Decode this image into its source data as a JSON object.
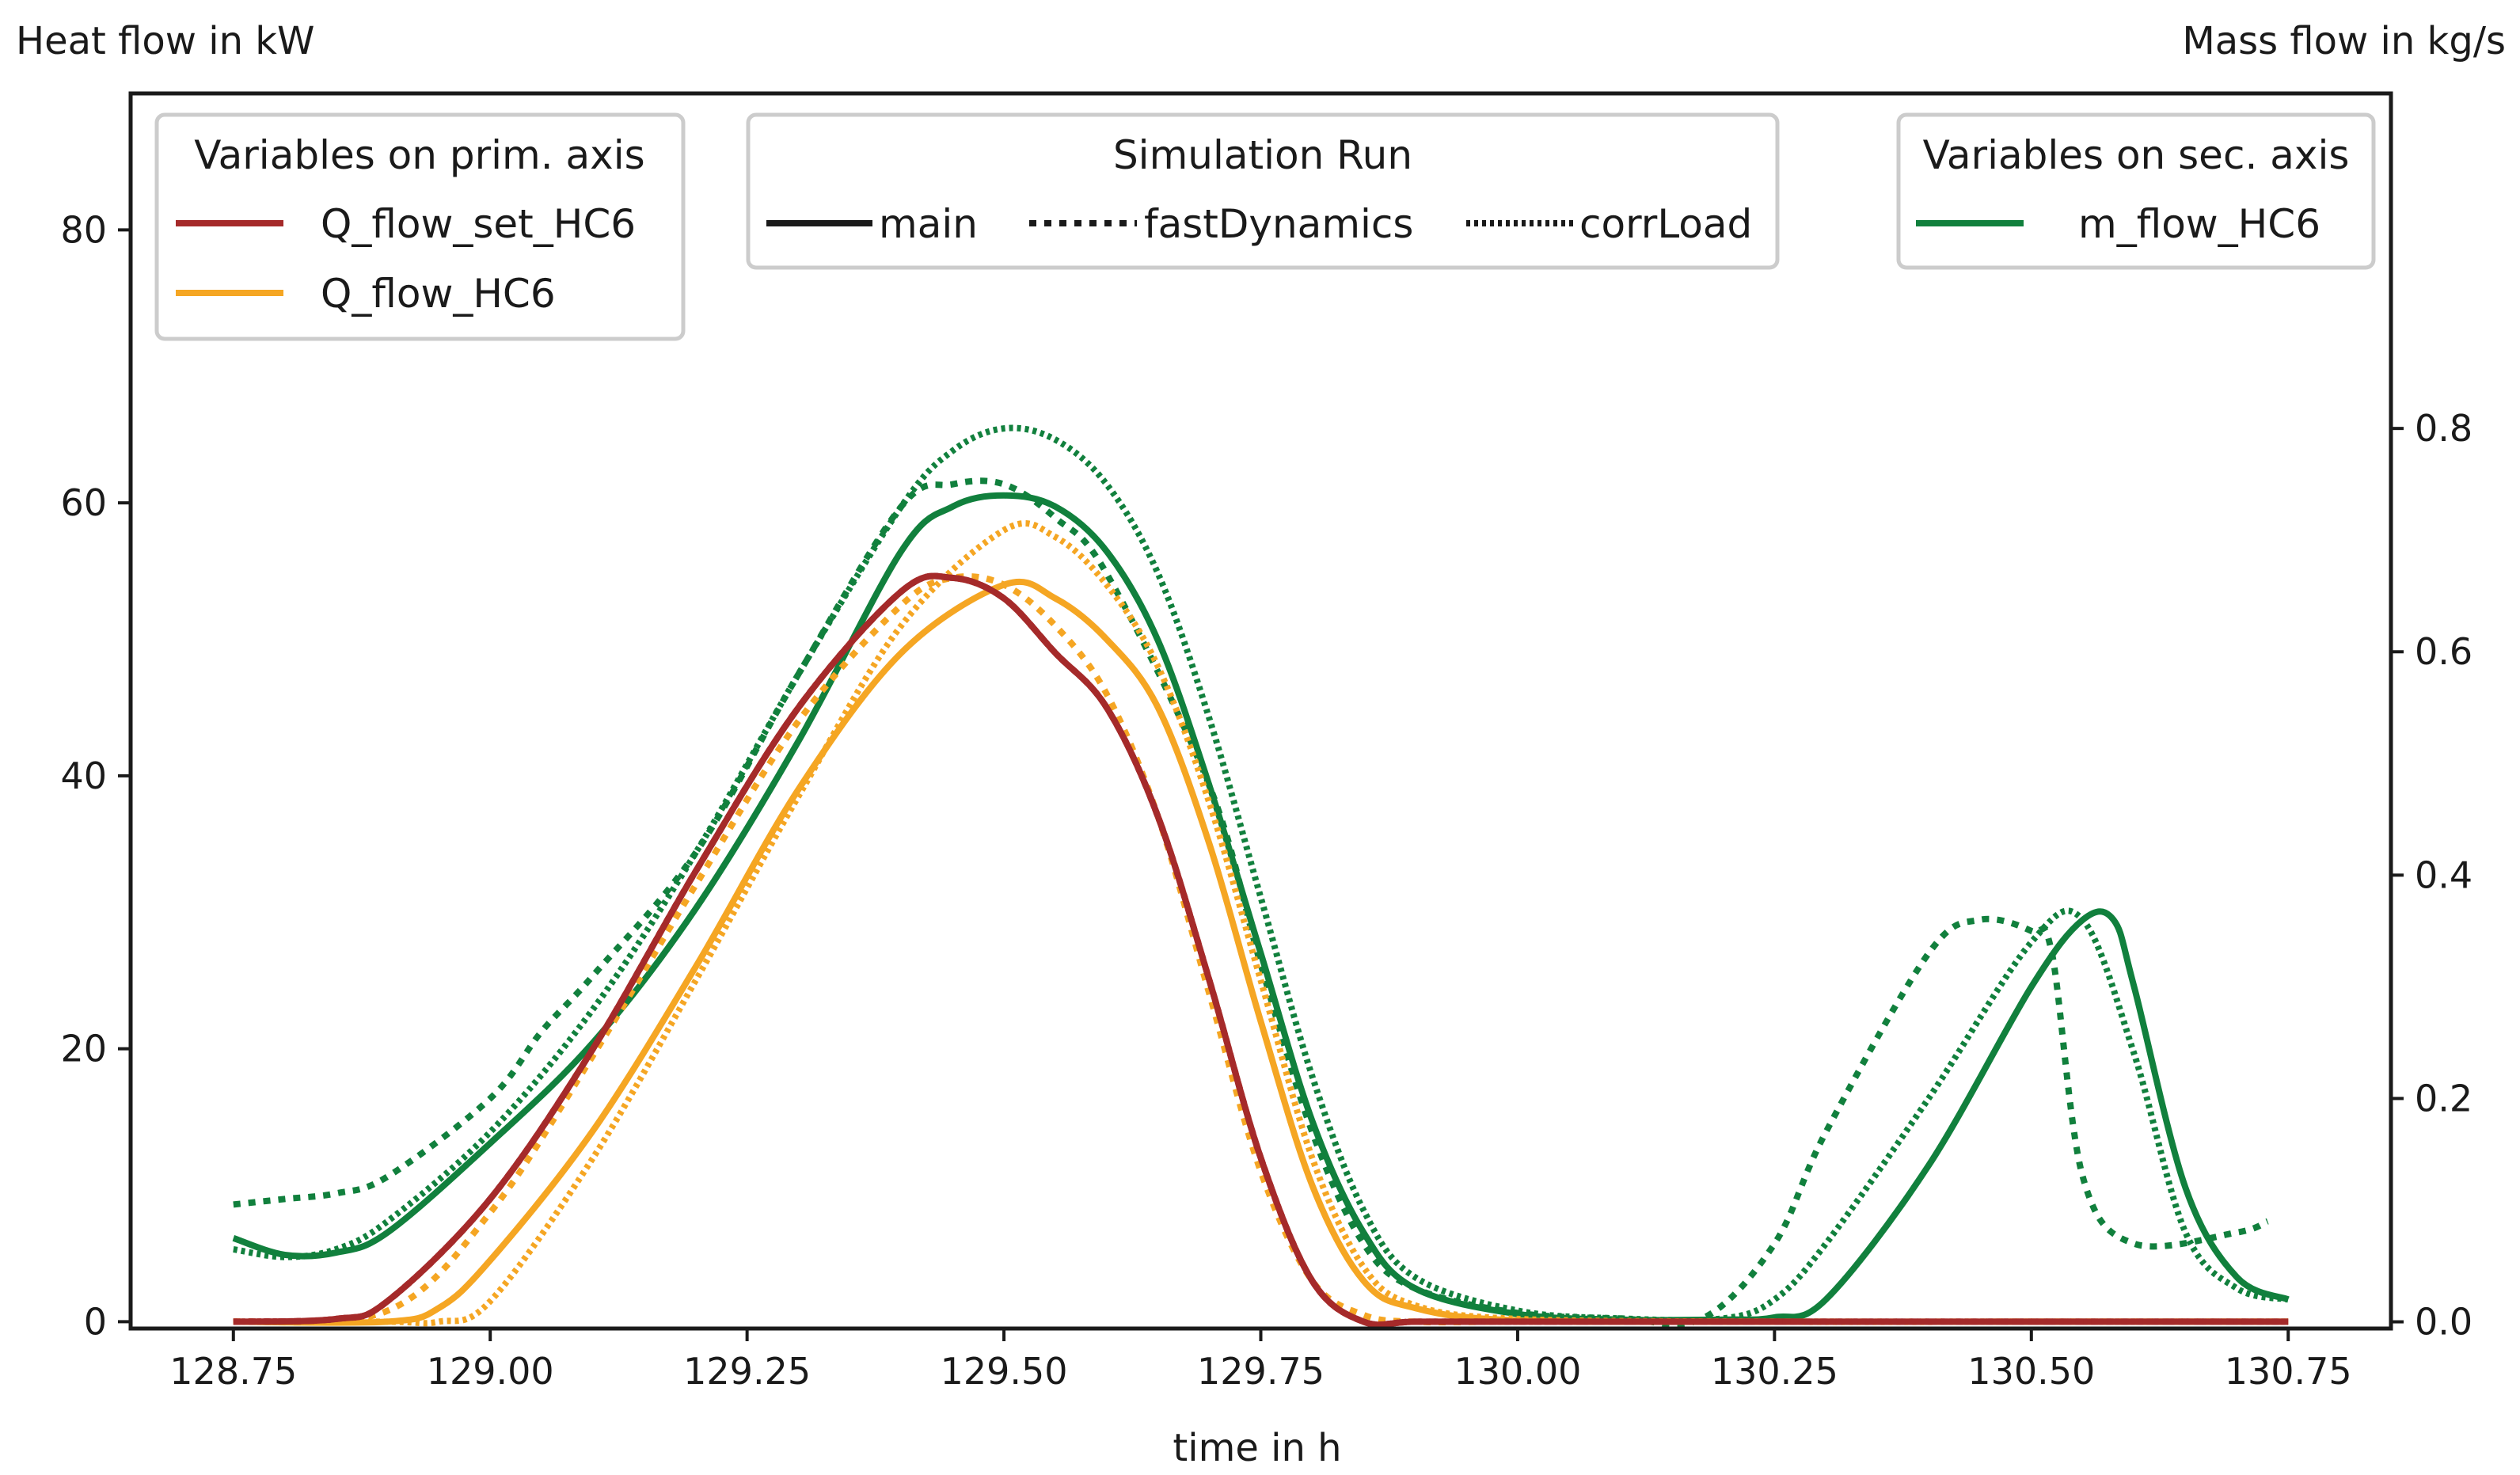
{
  "chart_data": {
    "type": "line",
    "xlabel": "time in h",
    "ylabel_primary": "Heat flow in kW",
    "ylabel_secondary": "Mass flow in kg/s",
    "xlim": [
      128.65,
      130.85
    ],
    "ylim_primary": [
      -0.5,
      90
    ],
    "ylim_secondary": [
      -0.006,
      1.1
    ],
    "x_ticks": [
      128.75,
      129.0,
      129.25,
      129.5,
      129.75,
      130.0,
      130.25,
      130.5,
      130.75
    ],
    "x_tick_labels": [
      "128.75",
      "129.00",
      "129.25",
      "129.50",
      "129.75",
      "130.00",
      "130.25",
      "130.50",
      "130.75"
    ],
    "y_ticks_primary": [
      0,
      20,
      40,
      60,
      80
    ],
    "y_tick_labels_primary": [
      "0",
      "20",
      "40",
      "60",
      "80"
    ],
    "y_ticks_secondary": [
      0.0,
      0.2,
      0.4,
      0.6,
      0.8
    ],
    "y_tick_labels_secondary": [
      "0.0",
      "0.2",
      "0.4",
      "0.6",
      "0.8"
    ],
    "colors": {
      "Q_flow_set_HC6": "#a52a2a",
      "Q_flow_HC6": "#f5a623",
      "m_flow_HC6": "#11803d"
    },
    "legends": {
      "primary": {
        "title": "Variables on prim. axis",
        "entries": [
          "Q_flow_set_HC6",
          "Q_flow_HC6"
        ],
        "placement": "top-left"
      },
      "runs": {
        "title": "Simulation Run",
        "entries": [
          "main",
          "fastDynamics",
          "corrLoad"
        ],
        "placement": "top-center"
      },
      "secondary": {
        "title": "Variables on sec. axis",
        "entries": [
          "m_flow_HC6"
        ],
        "placement": "top-right"
      }
    },
    "series": [
      {
        "name": "Q_flow_set_HC6",
        "run": "main",
        "axis": "primary",
        "x": [
          128.75,
          128.85,
          128.9,
          129.0,
          129.1,
          129.2,
          129.3,
          129.4,
          129.45,
          129.5,
          129.55,
          129.6,
          129.65,
          129.7,
          129.75,
          129.8,
          129.85,
          129.9,
          130.0,
          130.25,
          130.5,
          130.75
        ],
        "y": [
          0,
          0.2,
          1.5,
          9,
          20,
          33,
          45,
          53.5,
          54.5,
          53,
          49,
          45,
          37,
          25,
          12,
          3,
          0,
          0,
          0,
          0,
          0,
          0
        ]
      },
      {
        "name": "Q_flow_set_HC6",
        "run": "fastDynamics",
        "axis": "primary",
        "x": [
          128.75,
          128.85,
          128.9,
          129.0,
          129.1,
          129.2,
          129.3,
          129.4,
          129.45,
          129.5,
          129.55,
          129.6,
          129.65,
          129.7,
          129.75,
          129.8,
          129.85,
          129.9,
          130.0,
          130.25,
          130.5,
          130.75
        ],
        "y": [
          0,
          0.2,
          1.5,
          9,
          20,
          33,
          45,
          53.5,
          54.5,
          53,
          49,
          45,
          37,
          25,
          12,
          3,
          0,
          0,
          0,
          0,
          0,
          0
        ]
      },
      {
        "name": "Q_flow_set_HC6",
        "run": "corrLoad",
        "axis": "primary",
        "x": [
          128.75,
          128.85,
          128.9,
          129.0,
          129.1,
          129.2,
          129.3,
          129.4,
          129.45,
          129.5,
          129.55,
          129.6,
          129.65,
          129.7,
          129.75,
          129.8,
          129.85,
          129.9,
          130.0,
          130.25,
          130.5,
          130.75
        ],
        "y": [
          0,
          0.2,
          1.5,
          9,
          20,
          33,
          45,
          53.5,
          54.5,
          53,
          49,
          45,
          37,
          25,
          12,
          3,
          0,
          0,
          0,
          0,
          0,
          0
        ]
      },
      {
        "name": "Q_flow_HC6",
        "run": "main",
        "axis": "primary",
        "x": [
          128.75,
          128.9,
          128.95,
          129.0,
          129.1,
          129.2,
          129.3,
          129.4,
          129.5,
          129.55,
          129.6,
          129.65,
          129.7,
          129.75,
          129.8,
          129.85,
          129.9,
          130.0,
          130.25,
          130.5,
          130.75
        ],
        "y": [
          0,
          0,
          1,
          4.5,
          14,
          26,
          39,
          49,
          54,
          53,
          50,
          45,
          35,
          22,
          10,
          3,
          1,
          0.1,
          0,
          0,
          0
        ]
      },
      {
        "name": "Q_flow_HC6",
        "run": "fastDynamics",
        "axis": "primary",
        "x": [
          128.75,
          128.9,
          129.0,
          129.1,
          129.2,
          129.3,
          129.4,
          129.45,
          129.5,
          129.55,
          129.6,
          129.65,
          129.7,
          129.75,
          129.8,
          129.85,
          129.9,
          130.0,
          130.25,
          130.5,
          130.75
        ],
        "y": [
          0,
          0.8,
          8,
          19.5,
          32,
          44,
          52.5,
          54.5,
          54,
          51,
          46,
          37,
          24,
          11,
          3,
          0.5,
          0,
          0,
          0,
          0,
          0
        ]
      },
      {
        "name": "Q_flow_HC6",
        "run": "corrLoad",
        "axis": "primary",
        "x": [
          128.75,
          128.9,
          128.95,
          129.0,
          129.1,
          129.2,
          129.3,
          129.4,
          129.5,
          129.55,
          129.6,
          129.65,
          129.7,
          129.75,
          129.8,
          129.85,
          129.9,
          130.0,
          130.25,
          130.5,
          130.75
        ],
        "y": [
          0,
          0,
          0,
          1.5,
          12,
          25,
          38.5,
          51,
          58,
          57.5,
          54,
          48,
          38,
          25,
          12,
          4,
          1.2,
          0.2,
          0,
          0,
          0
        ]
      },
      {
        "name": "m_flow_HC6",
        "run": "main",
        "axis": "secondary",
        "x": [
          128.75,
          128.8,
          128.85,
          128.9,
          129.0,
          129.1,
          129.2,
          129.3,
          129.4,
          129.45,
          129.5,
          129.55,
          129.6,
          129.65,
          129.7,
          129.75,
          129.8,
          129.85,
          129.9,
          130.0,
          130.1,
          130.2,
          130.25,
          130.3,
          130.4,
          130.5,
          130.55,
          130.58,
          130.6,
          130.65,
          130.7,
          130.75
        ],
        "y": [
          0.075,
          0.06,
          0.062,
          0.08,
          0.16,
          0.25,
          0.37,
          0.52,
          0.69,
          0.73,
          0.74,
          0.73,
          0.69,
          0.61,
          0.48,
          0.33,
          0.18,
          0.08,
          0.03,
          0.007,
          0.002,
          0.002,
          0.004,
          0.02,
          0.14,
          0.3,
          0.36,
          0.36,
          0.3,
          0.12,
          0.04,
          0.02
        ]
      },
      {
        "name": "m_flow_HC6",
        "run": "fastDynamics",
        "axis": "secondary",
        "x": [
          128.75,
          128.8,
          128.85,
          128.9,
          129.0,
          129.05,
          129.1,
          129.2,
          129.3,
          129.4,
          129.45,
          129.5,
          129.55,
          129.6,
          129.7,
          129.75,
          129.8,
          129.85,
          129.9,
          130.0,
          130.1,
          130.18,
          130.25,
          130.3,
          130.4,
          130.45,
          130.5,
          130.52,
          130.55,
          130.6,
          130.7,
          130.73
        ],
        "y": [
          0.105,
          0.11,
          0.115,
          0.13,
          0.2,
          0.26,
          0.31,
          0.42,
          0.58,
          0.73,
          0.75,
          0.75,
          0.72,
          0.67,
          0.48,
          0.32,
          0.17,
          0.07,
          0.03,
          0.008,
          0.003,
          0.003,
          0.07,
          0.17,
          0.33,
          0.36,
          0.35,
          0.33,
          0.13,
          0.07,
          0.08,
          0.09
        ]
      },
      {
        "name": "m_flow_HC6",
        "run": "corrLoad",
        "axis": "secondary",
        "x": [
          128.75,
          128.8,
          128.85,
          128.9,
          129.0,
          129.1,
          129.2,
          129.3,
          129.4,
          129.45,
          129.5,
          129.55,
          129.6,
          129.65,
          129.7,
          129.75,
          129.8,
          129.85,
          129.9,
          130.0,
          130.1,
          130.2,
          130.25,
          130.3,
          130.4,
          130.5,
          130.55,
          130.6,
          130.65,
          130.7,
          130.75
        ],
        "y": [
          0.065,
          0.058,
          0.065,
          0.09,
          0.17,
          0.28,
          0.42,
          0.58,
          0.73,
          0.78,
          0.8,
          0.79,
          0.75,
          0.67,
          0.54,
          0.38,
          0.22,
          0.1,
          0.04,
          0.01,
          0.003,
          0.003,
          0.02,
          0.07,
          0.2,
          0.34,
          0.36,
          0.24,
          0.08,
          0.03,
          0.02
        ]
      }
    ]
  }
}
